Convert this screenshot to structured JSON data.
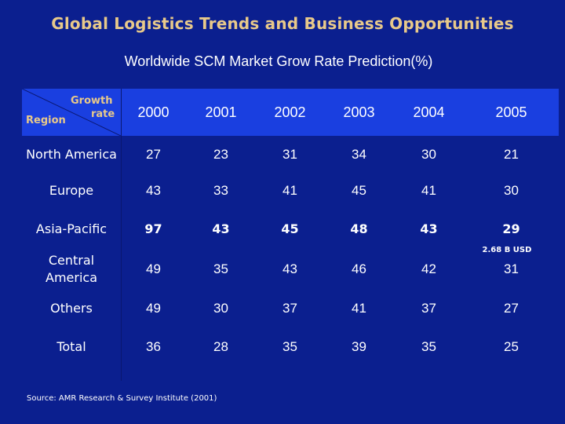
{
  "title": "Global Logistics Trends and Business Opportunities",
  "subtitle": "Worldwide SCM Market Grow Rate Prediction(%)",
  "table": {
    "corner": {
      "growth": "Growth",
      "rate": "rate",
      "region": "Region"
    },
    "years": [
      "2000",
      "2001",
      "2002",
      "2003",
      "2004",
      "2005"
    ],
    "rows": [
      {
        "region": "North America",
        "values": [
          "27",
          "23",
          "31",
          "34",
          "30",
          "21"
        ],
        "bold": false
      },
      {
        "region": "Europe",
        "values": [
          "43",
          "33",
          "41",
          "45",
          "41",
          "30"
        ],
        "bold": false
      },
      {
        "region": "Asia-Pacific",
        "values": [
          "97",
          "43",
          "45",
          "48",
          "43",
          "29"
        ],
        "bold": true,
        "note": "2.68 B USD"
      },
      {
        "region": "Central America",
        "values": [
          "49",
          "35",
          "43",
          "46",
          "42",
          "31"
        ],
        "bold": false
      },
      {
        "region": "Others",
        "values": [
          "49",
          "30",
          "37",
          "41",
          "37",
          "27"
        ],
        "bold": false
      },
      {
        "region": "Total",
        "values": [
          "36",
          "28",
          "35",
          "39",
          "35",
          "25"
        ],
        "bold": false
      }
    ]
  },
  "source": "Source: AMR Research & Survey Institute (2001)",
  "colors": {
    "background": "#0b1f8f",
    "header": "#1a3fe0",
    "title": "#e8c98a"
  }
}
